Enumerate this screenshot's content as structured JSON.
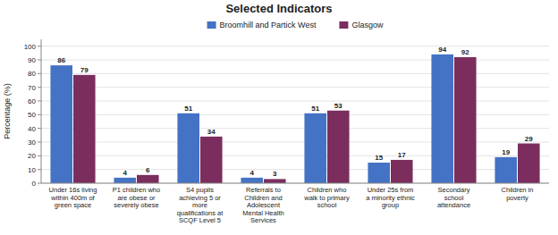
{
  "chart_data": {
    "type": "bar",
    "title": "Selected Indicators",
    "ylabel": "Percentage (%)",
    "categories": [
      "Under 16s living\nwithin 400m of\ngreen space",
      "P1 children who\nare obese or\nseverely obese",
      "S4 pupils\nachieving 5 or\nmore\nqualifications at\nSCQF Level 5",
      "Referrals to\nChildren and\nAdolescent\nMental Health\nServices",
      "Children who\nwalk to primary\nschool",
      "Under 25s from\na minority ethnic\ngroup",
      "Secondary\nschool\nattendance",
      "Children in\npoverty"
    ],
    "series": [
      {
        "name": "Broomhill and Partick West",
        "color": "#4472C4",
        "values": [
          86,
          4,
          51,
          4,
          51,
          15,
          94,
          19
        ]
      },
      {
        "name": "Glasgow",
        "color": "#7B2D5E",
        "values": [
          79,
          6,
          34,
          3,
          53,
          17,
          92,
          29
        ]
      }
    ],
    "ylim": [
      0,
      105
    ],
    "yticks": [
      0,
      10,
      20,
      30,
      40,
      50,
      60,
      70,
      80,
      90,
      100
    ],
    "grid": true,
    "legend": "top",
    "data_labels": true
  }
}
